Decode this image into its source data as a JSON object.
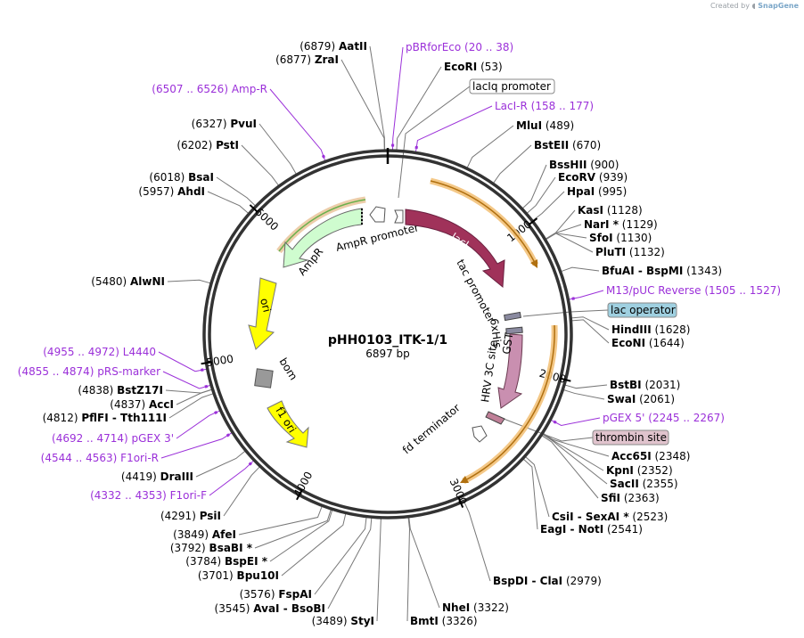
{
  "credit": {
    "prefix": "Created by",
    "brand": "SnapGene"
  },
  "plasmid": {
    "name": "pHH0103_ITK-1/1",
    "length_label": "6897 bp",
    "total_bp": 6897
  },
  "ticks": [
    "1000",
    "2000",
    "3000",
    "4000",
    "5000",
    "6000"
  ],
  "features": [
    {
      "label": "AmpR",
      "color": "#cffccf"
    },
    {
      "label": "AmpR promoter",
      "color": "#ffffff"
    },
    {
      "label": "lacI",
      "color": "#a0325a"
    },
    {
      "label": "tac promoter",
      "color": "#ffffff"
    },
    {
      "label": "6xHis",
      "color": "#8a8aa0"
    },
    {
      "label": "HRV 3C site",
      "color": "#8a8aa0"
    },
    {
      "label": "GST",
      "color": "#c98fb0"
    },
    {
      "label": "ori",
      "color": "#ffff00"
    },
    {
      "label": "f1 ori",
      "color": "#ffff00"
    },
    {
      "label": "bom",
      "color": "#999999"
    },
    {
      "label": "fd terminator",
      "color": "#ffffff"
    }
  ],
  "boxed_labels": [
    {
      "text": "lacIq promoter",
      "fill": "#ffffff"
    },
    {
      "text": "lac operator",
      "fill": "#9fd0e0"
    },
    {
      "text": "thrombin site",
      "fill": "#e0c3cd"
    }
  ],
  "sites_right": [
    {
      "pos": "(20 .. 38)",
      "name": "pBRforEco",
      "primer": true
    },
    {
      "pos": "(53)",
      "name": "EcoRI",
      "primer": false
    },
    {
      "pos": "(158 .. 177)",
      "name": "LacI-R",
      "primer": true
    },
    {
      "pos": "(489)",
      "name": "MluI",
      "primer": false
    },
    {
      "pos": "(670)",
      "name": "BstEII",
      "primer": false
    },
    {
      "pos": "(900)",
      "name": "BssHII",
      "primer": false
    },
    {
      "pos": "(939)",
      "name": "EcoRV",
      "primer": false
    },
    {
      "pos": "(995)",
      "name": "HpaI",
      "primer": false
    },
    {
      "pos": "(1128)",
      "name": "KasI",
      "primer": false
    },
    {
      "pos": "(1129)",
      "name": "NarI *",
      "primer": false
    },
    {
      "pos": "(1130)",
      "name": "SfoI",
      "primer": false
    },
    {
      "pos": "(1132)",
      "name": "PluTI",
      "primer": false
    },
    {
      "pos": "(1343)",
      "name": "BfuAI  -  BspMI",
      "primer": false
    },
    {
      "pos": "(1505 .. 1527)",
      "name": "M13/pUC Reverse",
      "primer": true
    },
    {
      "pos": "(1628)",
      "name": "HindIII",
      "primer": false
    },
    {
      "pos": "(1644)",
      "name": "EcoNI",
      "primer": false
    },
    {
      "pos": "(2031)",
      "name": "BstBI",
      "primer": false
    },
    {
      "pos": "(2061)",
      "name": "SwaI",
      "primer": false
    },
    {
      "pos": "(2245 .. 2267)",
      "name": "pGEX 5'",
      "primer": true
    },
    {
      "pos": "(2348)",
      "name": "Acc65I",
      "primer": false
    },
    {
      "pos": "(2352)",
      "name": "KpnI",
      "primer": false
    },
    {
      "pos": "(2355)",
      "name": "SacII",
      "primer": false
    },
    {
      "pos": "(2363)",
      "name": "SfiI",
      "primer": false
    },
    {
      "pos": "(2523)",
      "name": "CsiI  -  SexAI *",
      "primer": false
    },
    {
      "pos": "(2541)",
      "name": "EagI  -  NotI",
      "primer": false
    },
    {
      "pos": "(2979)",
      "name": "BspDI  -  ClaI",
      "primer": false
    },
    {
      "pos": "(3322)",
      "name": "NheI",
      "primer": false
    },
    {
      "pos": "(3326)",
      "name": "BmtI",
      "primer": false
    }
  ],
  "sites_left": [
    {
      "pos": "(6879)",
      "name": "AatII",
      "primer": false
    },
    {
      "pos": "(6877)",
      "name": "ZraI",
      "primer": false
    },
    {
      "pos": "(6507 .. 6526)",
      "name": "Amp-R",
      "primer": true
    },
    {
      "pos": "(6327)",
      "name": "PvuI",
      "primer": false
    },
    {
      "pos": "(6202)",
      "name": "PstI",
      "primer": false
    },
    {
      "pos": "(6018)",
      "name": "BsaI",
      "primer": false
    },
    {
      "pos": "(5957)",
      "name": "AhdI",
      "primer": false
    },
    {
      "pos": "(5480)",
      "name": "AlwNI",
      "primer": false
    },
    {
      "pos": "(4955 .. 4972)",
      "name": "L4440",
      "primer": true
    },
    {
      "pos": "(4855 .. 4874)",
      "name": "pRS-marker",
      "primer": true
    },
    {
      "pos": "(4838)",
      "name": "BstZ17I",
      "primer": false
    },
    {
      "pos": "(4837)",
      "name": "AccI",
      "primer": false
    },
    {
      "pos": "(4812)",
      "name": "PflFI  -  Tth111I",
      "primer": false
    },
    {
      "pos": "(4692 .. 4714)",
      "name": "pGEX 3'",
      "primer": true
    },
    {
      "pos": "(4544 .. 4563)",
      "name": "F1ori-R",
      "primer": true
    },
    {
      "pos": "(4419)",
      "name": "DraIII",
      "primer": false
    },
    {
      "pos": "(4332 .. 4353)",
      "name": "F1ori-F",
      "primer": true
    },
    {
      "pos": "(4291)",
      "name": "PsiI",
      "primer": false
    },
    {
      "pos": "(3849)",
      "name": "AfeI",
      "primer": false
    },
    {
      "pos": "(3792)",
      "name": "BsaBI *",
      "primer": false
    },
    {
      "pos": "(3784)",
      "name": "BspEI *",
      "primer": false
    },
    {
      "pos": "(3701)",
      "name": "Bpu10I",
      "primer": false
    },
    {
      "pos": "(3576)",
      "name": "FspAI",
      "primer": false
    },
    {
      "pos": "(3545)",
      "name": "AvaI  -  BsoBI",
      "primer": false
    },
    {
      "pos": "(3489)",
      "name": "StyI",
      "primer": false
    }
  ]
}
